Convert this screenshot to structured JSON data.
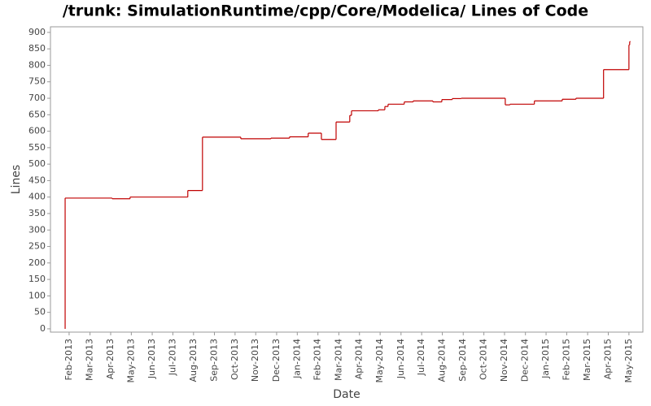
{
  "chart_data": {
    "type": "step",
    "title": "/trunk: SimulationRuntime/cpp/Core/Modelica/ Lines of Code",
    "x_label": "Date",
    "y_label": "Lines",
    "series": [
      {
        "name": "Lines",
        "color": "#c00000",
        "x": [
          2013.067,
          2013.067,
          2013.256,
          2013.328,
          2013.56,
          2013.619,
          2013.773,
          2013.894,
          2013.969,
          2014.044,
          2014.097,
          2014.156,
          2014.211,
          2014.218,
          2014.326,
          2014.352,
          2014.365,
          2014.43,
          2014.466,
          2014.545,
          2014.581,
          2014.623,
          2014.659,
          2014.836,
          2014.855,
          2014.953,
          2015.065,
          2015.12,
          2015.231,
          2015.333,
          2015.336
        ],
        "values": [
          0,
          397,
          395,
          400,
          420,
          582,
          577,
          579,
          583,
          594,
          575,
          628,
          648,
          662,
          665,
          675,
          682,
          689,
          692,
          689,
          696,
          699,
          700,
          680,
          682,
          692,
          697,
          700,
          787,
          862,
          872
        ]
      }
    ],
    "xlim": [
      2013.008,
      2015.389
    ],
    "ylim": [
      -10,
      917
    ],
    "yticks": [
      0,
      50,
      100,
      150,
      200,
      250,
      300,
      350,
      400,
      450,
      500,
      550,
      600,
      650,
      700,
      750,
      800,
      850,
      900
    ],
    "xticks": [
      {
        "value": 2013.083,
        "label": "Feb-2013"
      },
      {
        "value": 2013.167,
        "label": "Mar-2013"
      },
      {
        "value": 2013.25,
        "label": "Apr-2013"
      },
      {
        "value": 2013.333,
        "label": "May-2013"
      },
      {
        "value": 2013.417,
        "label": "Jun-2013"
      },
      {
        "value": 2013.5,
        "label": "Jul-2013"
      },
      {
        "value": 2013.583,
        "label": "Aug-2013"
      },
      {
        "value": 2013.667,
        "label": "Sep-2013"
      },
      {
        "value": 2013.75,
        "label": "Oct-2013"
      },
      {
        "value": 2013.833,
        "label": "Nov-2013"
      },
      {
        "value": 2013.917,
        "label": "Dec-2013"
      },
      {
        "value": 2014.0,
        "label": "Jan-2014"
      },
      {
        "value": 2014.083,
        "label": "Feb-2014"
      },
      {
        "value": 2014.167,
        "label": "Mar-2014"
      },
      {
        "value": 2014.25,
        "label": "Apr-2014"
      },
      {
        "value": 2014.333,
        "label": "May-2014"
      },
      {
        "value": 2014.417,
        "label": "Jun-2014"
      },
      {
        "value": 2014.5,
        "label": "Jul-2014"
      },
      {
        "value": 2014.583,
        "label": "Aug-2014"
      },
      {
        "value": 2014.667,
        "label": "Sep-2014"
      },
      {
        "value": 2014.75,
        "label": "Oct-2014"
      },
      {
        "value": 2014.833,
        "label": "Nov-2014"
      },
      {
        "value": 2014.917,
        "label": "Dec-2014"
      },
      {
        "value": 2015.0,
        "label": "Jan-2015"
      },
      {
        "value": 2015.083,
        "label": "Feb-2015"
      },
      {
        "value": 2015.167,
        "label": "Mar-2015"
      },
      {
        "value": 2015.25,
        "label": "Apr-2015"
      },
      {
        "value": 2015.333,
        "label": "May-2015"
      }
    ],
    "grid": false
  }
}
